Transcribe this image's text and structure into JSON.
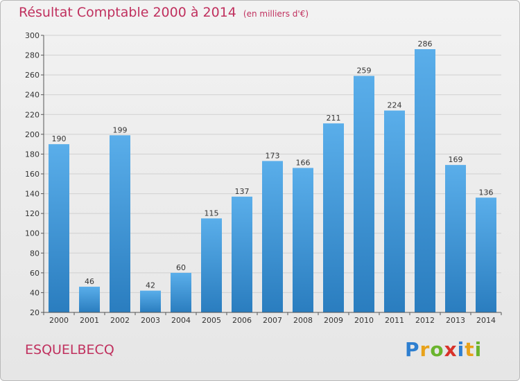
{
  "header": {
    "title": "Résultat Comptable 2000 à 2014",
    "unit": "(en milliers d'€)"
  },
  "footer": {
    "commune": "ESQUELBECQ"
  },
  "logo": {
    "text": "Proxiti",
    "letters": [
      {
        "ch": "P",
        "color": "#2e7fd0"
      },
      {
        "ch": "r",
        "color": "#e8a21a"
      },
      {
        "ch": "o",
        "color": "#6ab42d"
      },
      {
        "ch": "x",
        "color": "#d8322a"
      },
      {
        "ch": "i",
        "color": "#2e7fd0"
      },
      {
        "ch": "t",
        "color": "#e8a21a"
      },
      {
        "ch": "i",
        "color": "#6ab42d"
      }
    ]
  },
  "colors": {
    "bar_top": "#5aaeea",
    "bar_bottom": "#2a7dbf",
    "title": "#c0305e",
    "grid": "#d0d0d0"
  },
  "chart_data": {
    "type": "bar",
    "categories": [
      "2000",
      "2001",
      "2002",
      "2003",
      "2004",
      "2005",
      "2006",
      "2007",
      "2008",
      "2009",
      "2010",
      "2011",
      "2012",
      "2013",
      "2014"
    ],
    "values": [
      190,
      46,
      199,
      42,
      60,
      115,
      137,
      173,
      166,
      211,
      259,
      224,
      286,
      169,
      136
    ],
    "ylim": [
      20,
      300
    ],
    "yticks": [
      20,
      40,
      60,
      80,
      100,
      120,
      140,
      160,
      180,
      200,
      220,
      240,
      260,
      280,
      300
    ],
    "grid": true,
    "legend": "none"
  }
}
